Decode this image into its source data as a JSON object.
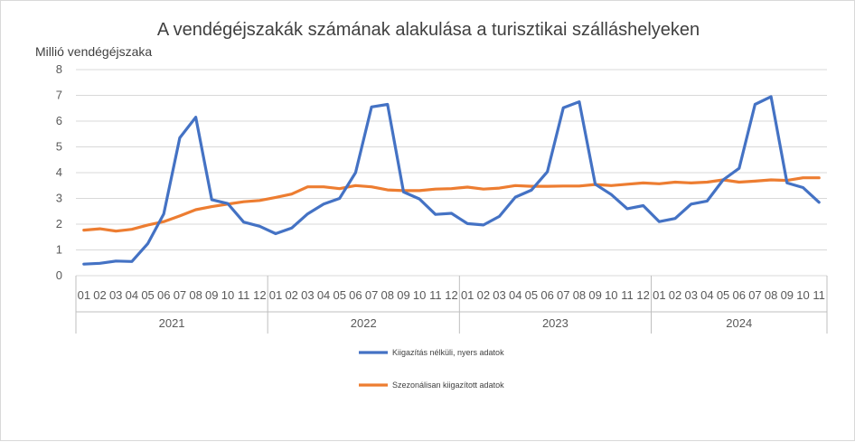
{
  "chart_data": {
    "type": "line",
    "title": "A vendégéjszakák számának alakulása a turisztikai szálláshelyeken",
    "ylabel": "Millió vendégéjszaka",
    "xlabel": "",
    "ylim": [
      0,
      8
    ],
    "yticks": [
      "0",
      "1",
      "2",
      "3",
      "4",
      "5",
      "6",
      "7",
      "8"
    ],
    "grid": true,
    "legend_position": "bottom",
    "years": [
      {
        "label": "2021",
        "months": [
          "01",
          "02",
          "03",
          "04",
          "05",
          "06",
          "07",
          "08",
          "09",
          "10",
          "11",
          "12"
        ]
      },
      {
        "label": "2022",
        "months": [
          "01",
          "02",
          "03",
          "04",
          "05",
          "06",
          "07",
          "08",
          "09",
          "10",
          "11",
          "12"
        ]
      },
      {
        "label": "2023",
        "months": [
          "01",
          "02",
          "03",
          "04",
          "05",
          "06",
          "07",
          "08",
          "09",
          "10",
          "11",
          "12"
        ]
      },
      {
        "label": "2024",
        "months": [
          "01",
          "02",
          "03",
          "04",
          "05",
          "06",
          "07",
          "08",
          "09",
          "10",
          "11"
        ]
      }
    ],
    "series": [
      {
        "name": "Kiigazítás nélküli, nyers adatok",
        "color": "#4472c4",
        "values": [
          0.45,
          0.48,
          0.57,
          0.55,
          1.25,
          2.4,
          5.35,
          6.15,
          2.95,
          2.8,
          2.08,
          1.92,
          1.63,
          1.85,
          2.4,
          2.78,
          3.0,
          4.0,
          6.55,
          6.65,
          3.25,
          2.98,
          2.38,
          2.42,
          2.02,
          1.97,
          2.3,
          3.05,
          3.32,
          4.03,
          6.52,
          6.75,
          3.55,
          3.15,
          2.6,
          2.72,
          2.1,
          2.22,
          2.78,
          2.9,
          3.72,
          4.17,
          6.65,
          6.95,
          3.6,
          3.42,
          2.85
        ]
      },
      {
        "name": "Szezonálisan kiigazított adatok",
        "color": "#ed7d31",
        "values": [
          1.77,
          1.82,
          1.73,
          1.8,
          1.97,
          2.1,
          2.32,
          2.56,
          2.68,
          2.78,
          2.87,
          2.92,
          3.04,
          3.17,
          3.45,
          3.45,
          3.38,
          3.5,
          3.45,
          3.33,
          3.3,
          3.3,
          3.36,
          3.38,
          3.44,
          3.36,
          3.4,
          3.5,
          3.47,
          3.47,
          3.48,
          3.48,
          3.54,
          3.5,
          3.55,
          3.6,
          3.57,
          3.63,
          3.6,
          3.63,
          3.72,
          3.63,
          3.67,
          3.72,
          3.7,
          3.8,
          3.8
        ]
      }
    ]
  }
}
